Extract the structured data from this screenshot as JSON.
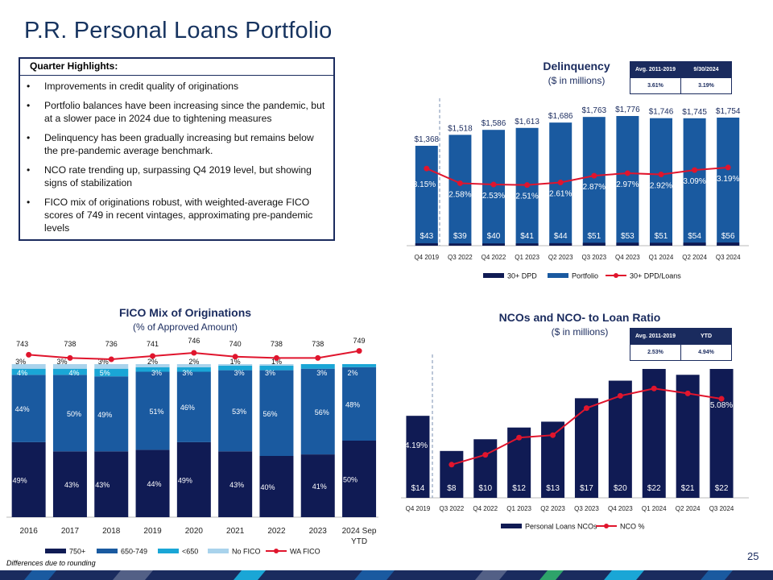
{
  "page": {
    "title": "P.R. Personal Loans Portfolio",
    "page_number": "25",
    "footnote": "Differences due to rounding"
  },
  "highlights": {
    "title": "Quarter Highlights:",
    "items": [
      "Improvements in credit quality of originations",
      "Portfolio balances have been increasing since the pandemic, but at a slower pace in 2024 due to tightening measures",
      "Delinquency has been gradually increasing but remains below the pre-pandemic average benchmark.",
      "NCO rate trending up, surpassing Q4 2019 level, but showing signs of stabilization",
      "FICO mix of originations robust, with weighted-average FICO scores of 749 in recent vintages, approximating  pre-pandemic levels"
    ]
  },
  "colors": {
    "navy": "#101b54",
    "blue": "#1a5aa0",
    "cyan": "#1aa6d6",
    "light": "#a9d3ec",
    "red": "#e0152d",
    "title": "#16335f"
  },
  "chart_data": [
    {
      "id": "delinquency",
      "type": "bar",
      "title": "Delinquency",
      "subtitle": "($ in millions)",
      "categories": [
        "Q4 2019",
        "Q3 2022",
        "Q4 2022",
        "Q1 2023",
        "Q2 2023",
        "Q3 2023",
        "Q4 2023",
        "Q1 2024",
        "Q2 2024",
        "Q3 2024"
      ],
      "series": [
        {
          "name": "30+ DPD",
          "values": [
            43,
            39,
            40,
            41,
            44,
            51,
            53,
            51,
            54,
            56
          ],
          "labels": [
            "$43",
            "$39",
            "$40",
            "$41",
            "$44",
            "$51",
            "$53",
            "$51",
            "$54",
            "$56"
          ]
        },
        {
          "name": "Portfolio",
          "values": [
            1368,
            1518,
            1586,
            1613,
            1686,
            1763,
            1776,
            1746,
            1745,
            1754
          ],
          "labels": [
            "$1,368",
            "$1,518",
            "$1,586",
            "$1,613",
            "$1,686",
            "$1,763",
            "$1,776",
            "$1,746",
            "$1,745",
            "$1,754"
          ]
        },
        {
          "name": "30+ DPD/Loans",
          "values": [
            3.15,
            2.58,
            2.53,
            2.51,
            2.61,
            2.87,
            2.97,
            2.92,
            3.09,
            3.19
          ],
          "labels": [
            "3.15%",
            "2.58%",
            "2.53%",
            "2.51%",
            "2.61%",
            "2.87%",
            "2.97%",
            "2.92%",
            "3.09%",
            "3.19%"
          ]
        }
      ],
      "benchmark": {
        "headers": [
          "Avg. 2011-2019",
          "9/30/2024"
        ],
        "values": [
          "3.61%",
          "3.19%"
        ]
      },
      "legend": [
        "30+ DPD",
        "Portfolio",
        "30+ DPD/Loans"
      ],
      "legend_position": "bottom"
    },
    {
      "id": "fico",
      "type": "bar",
      "stacked": true,
      "title": "FICO Mix of Originations",
      "subtitle": "(% of Approved Amount)",
      "categories": [
        "2016",
        "2017",
        "2018",
        "2019",
        "2020",
        "2021",
        "2022",
        "2023",
        "2024 Sep YTD"
      ],
      "series": [
        {
          "name": "750+",
          "values": [
            49,
            43,
            43,
            44,
            49,
            43,
            40,
            41,
            50
          ],
          "labels": [
            "49%",
            "43%",
            "43%",
            "44%",
            "49%",
            "43%",
            "40%",
            "41%",
            "50%"
          ]
        },
        {
          "name": "650-749",
          "values": [
            44,
            50,
            49,
            51,
            46,
            53,
            56,
            56,
            48
          ],
          "labels": [
            "44%",
            "50%",
            "49%",
            "51%",
            "46%",
            "53%",
            "56%",
            "56%",
            "48%"
          ]
        },
        {
          "name": "<650",
          "values": [
            4,
            4,
            5,
            3,
            3,
            3,
            3,
            3,
            2
          ],
          "labels": [
            "4%",
            "4%",
            "5%",
            "3%",
            "3%",
            "3%",
            "3%",
            "3%",
            "2%"
          ]
        },
        {
          "name": "No FICO",
          "values": [
            3,
            3,
            3,
            2,
            2,
            1,
            1,
            0,
            0
          ],
          "labels": [
            "3%",
            "3%",
            "3%",
            "2%",
            "2%",
            "1%",
            "1%",
            "",
            ""
          ]
        },
        {
          "name": "WA FICO",
          "values": [
            743,
            738,
            736,
            741,
            746,
            740,
            738,
            738,
            749
          ],
          "labels": [
            "743",
            "738",
            "736",
            "741",
            "746",
            "740",
            "738",
            "738",
            "749"
          ]
        }
      ],
      "legend": [
        "750+",
        "650-749",
        "<650",
        "No FICO",
        "WA FICO"
      ],
      "legend_position": "bottom"
    },
    {
      "id": "nco",
      "type": "bar",
      "title": "NCOs and NCO- to Loan Ratio",
      "subtitle": "($ in millions)",
      "categories": [
        "Q4 2019",
        "Q3 2022",
        "Q4 2022",
        "Q1 2023",
        "Q2 2023",
        "Q3 2023",
        "Q4 2023",
        "Q1 2024",
        "Q2 2024",
        "Q3 2024"
      ],
      "series": [
        {
          "name": "Personal Loans NCOs",
          "values": [
            14,
            8,
            10,
            12,
            13,
            17,
            20,
            22,
            21,
            22
          ],
          "labels": [
            "$14",
            "$8",
            "$10",
            "$12",
            "$13",
            "$17",
            "$20",
            "$22",
            "$21",
            "$22"
          ]
        },
        {
          "name": "NCO %",
          "values": [
            4.19,
            2.4,
            2.8,
            3.5,
            3.6,
            4.7,
            5.2,
            5.5,
            5.3,
            5.08
          ],
          "labels": [
            "4.19%",
            "",
            "",
            "",
            "",
            "",
            "",
            "",
            "",
            "5.08%"
          ]
        }
      ],
      "benchmark": {
        "headers": [
          "Avg. 2011-2019",
          "YTD"
        ],
        "values": [
          "2.53%",
          "4.94%"
        ]
      },
      "legend": [
        "Personal Loans NCOs",
        "NCO %"
      ],
      "legend_position": "bottom"
    }
  ]
}
